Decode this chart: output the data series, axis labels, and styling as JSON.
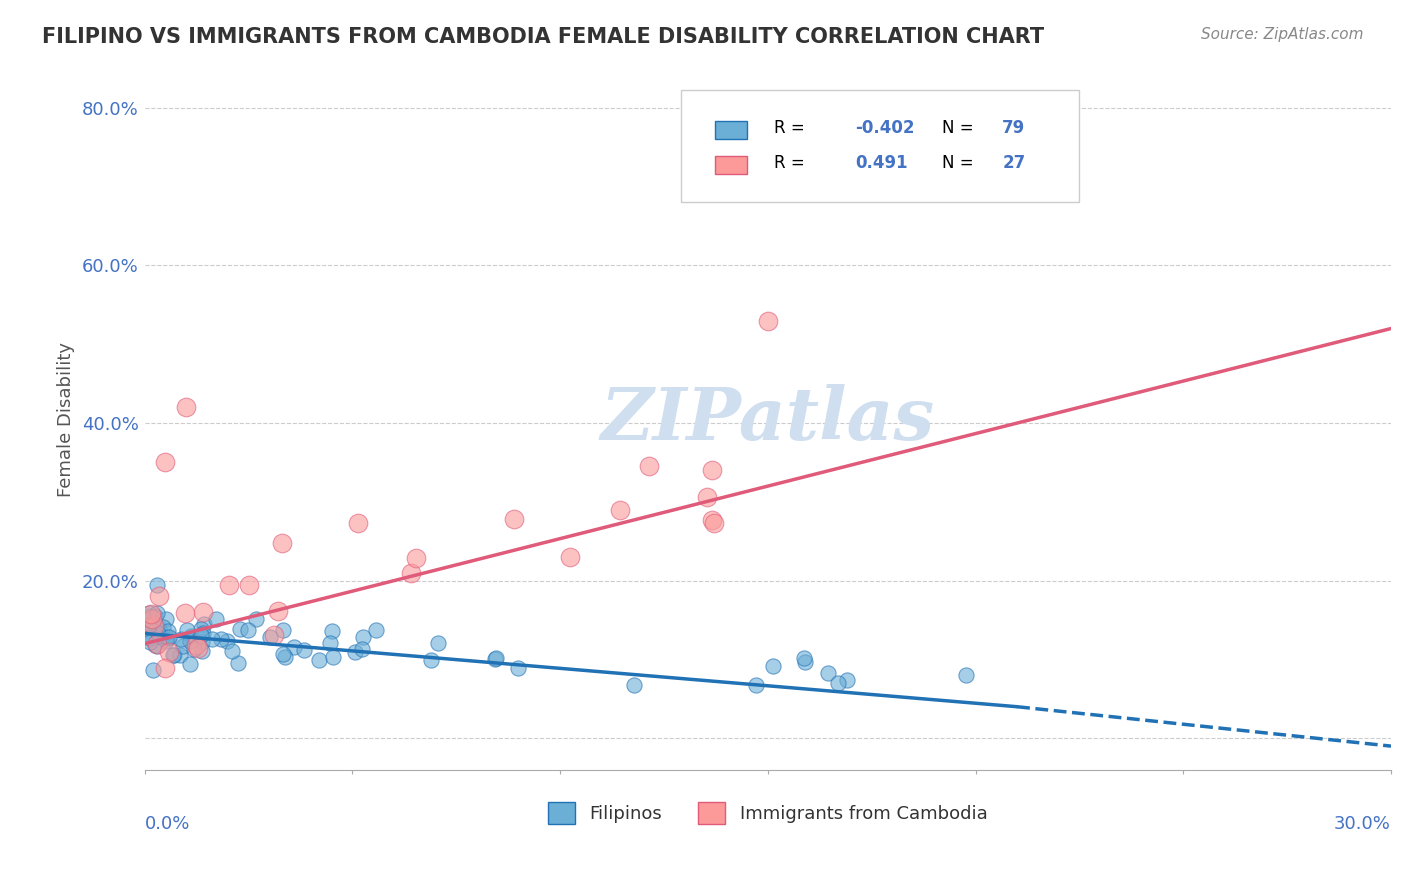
{
  "title": "FILIPINO VS IMMIGRANTS FROM CAMBODIA FEMALE DISABILITY CORRELATION CHART",
  "source": "Source: ZipAtlas.com",
  "ylabel": "Female Disability",
  "xlim": [
    0.0,
    0.3
  ],
  "ylim": [
    -0.04,
    0.85
  ],
  "blue_color": "#6baed6",
  "pink_color": "#fb9a99",
  "blue_line_color": "#2171b5",
  "pink_line_color": "#e05a7a",
  "axis_label_color": "#4472c4",
  "watermark_color": "#d0dff0"
}
